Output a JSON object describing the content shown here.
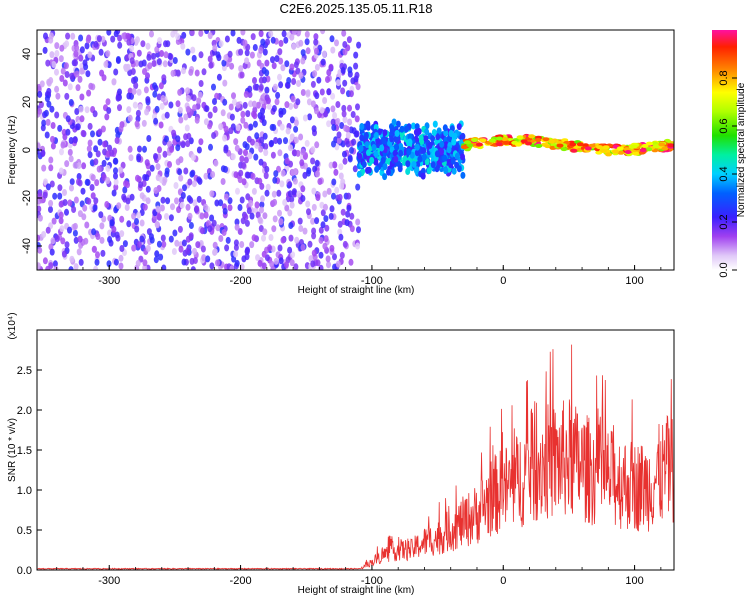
{
  "title": "C2E6.2025.135.05.11.R18",
  "chart_data": [
    {
      "type": "heatmap",
      "title": "C2E6.2025.135.05.11.R18",
      "xlabel": "Height of straight line (km)",
      "ylabel": "Frequency (Hz)",
      "xlim": [
        -355,
        130
      ],
      "ylim": [
        -50,
        50
      ],
      "x_ticks": [
        "-300",
        "-200",
        "-100",
        "0",
        "100"
      ],
      "y_ticks": [
        "-40",
        "-20",
        "0",
        "20",
        "40"
      ],
      "colorbar": {
        "label": "Normalized spectral amplitude",
        "range": [
          0,
          1
        ],
        "ticks": [
          "0.0",
          "0.2",
          "0.4",
          "0.6",
          "0.8"
        ]
      },
      "regions": [
        {
          "x_range": [
            -355,
            -110
          ],
          "y_range": [
            -50,
            50
          ],
          "amplitude": [
            0.05,
            0.25
          ],
          "pattern": "diffuse noise"
        },
        {
          "x_range": [
            -110,
            -30
          ],
          "y_range": [
            -12,
            12
          ],
          "amplitude": [
            0.2,
            0.45
          ],
          "pattern": "broadband"
        },
        {
          "x_range": [
            -30,
            130
          ],
          "y_range": [
            -3,
            5
          ],
          "amplitude": [
            0.6,
            1.0
          ],
          "pattern": "narrow line near 2 Hz"
        }
      ],
      "grid": false
    },
    {
      "type": "line",
      "xlabel": "Height of straight line (km)",
      "ylabel": "SNR (10 * v/v)",
      "y_multiplier": "(x10⁴)",
      "xlim": [
        -355,
        130
      ],
      "ylim": [
        0,
        3
      ],
      "x_ticks": [
        "-300",
        "-200",
        "-100",
        "0",
        "100"
      ],
      "y_ticks": [
        "0.0",
        "0.5",
        "1.0",
        "1.5",
        "2.0",
        "2.5"
      ],
      "line_color": "#e8312f",
      "series": [
        {
          "x": [
            -355,
            -110,
            -100,
            -90,
            -80,
            -70,
            -60,
            -50,
            -40,
            -30,
            -20,
            -10,
            0,
            10,
            20,
            30,
            40,
            50,
            60,
            70,
            80,
            90,
            100,
            110,
            120,
            130
          ],
          "y": [
            0.005,
            0.005,
            0.1,
            0.2,
            0.25,
            0.25,
            0.35,
            0.4,
            0.5,
            0.6,
            0.7,
            0.9,
            1.0,
            1.1,
            1.25,
            1.35,
            1.35,
            1.4,
            1.3,
            1.2,
            1.15,
            1.1,
            1.05,
            1.05,
            1.2,
            1.3
          ]
        }
      ],
      "grid": false
    }
  ]
}
